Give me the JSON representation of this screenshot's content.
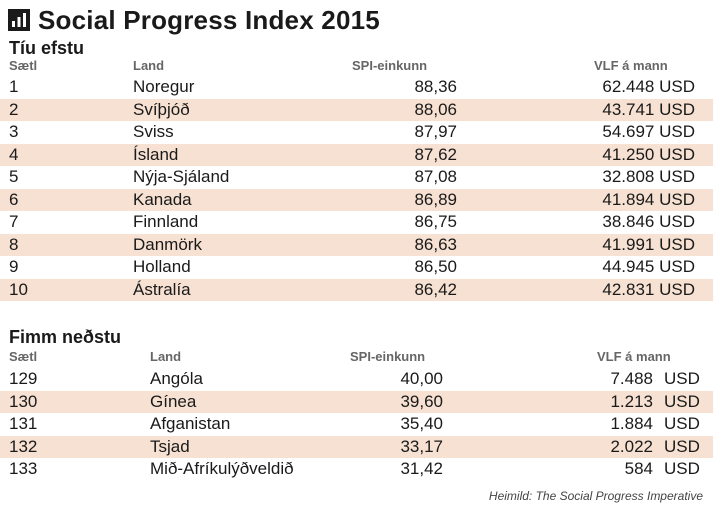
{
  "title": "Social Progress Index 2015",
  "top": {
    "heading": "Tíu efstu",
    "headers": {
      "rank": "Sætl",
      "country": "Land",
      "spi": "SPI-einkunn",
      "gdp": "VLF á mann"
    },
    "rows": [
      {
        "rank": "1",
        "country": "Noregur",
        "spi": "88,36",
        "gdp": "62.448 USD"
      },
      {
        "rank": "2",
        "country": "Svíþjóð",
        "spi": "88,06",
        "gdp": "43.741 USD"
      },
      {
        "rank": "3",
        "country": "Sviss",
        "spi": "87,97",
        "gdp": "54.697 USD"
      },
      {
        "rank": "4",
        "country": "Ísland",
        "spi": "87,62",
        "gdp": "41.250 USD"
      },
      {
        "rank": "5",
        "country": "Nýja-Sjáland",
        "spi": "87,08",
        "gdp": "32.808 USD"
      },
      {
        "rank": "6",
        "country": "Kanada",
        "spi": "86,89",
        "gdp": "41.894 USD"
      },
      {
        "rank": "7",
        "country": "Finnland",
        "spi": "86,75",
        "gdp": "38.846 USD"
      },
      {
        "rank": "8",
        "country": "Danmörk",
        "spi": "86,63",
        "gdp": "41.991 USD"
      },
      {
        "rank": "9",
        "country": "Holland",
        "spi": "86,50",
        "gdp": "44.945 USD"
      },
      {
        "rank": "10",
        "country": "Ástralía",
        "spi": "86,42",
        "gdp": "42.831 USD"
      }
    ]
  },
  "bottom": {
    "heading": "Fimm neðstu",
    "headers": {
      "rank": "Sætl",
      "country": "Land",
      "spi": "SPI-einkunn",
      "gdp": "VLF á mann"
    },
    "rows": [
      {
        "rank": "129",
        "country": "Angóla",
        "spi": "40,00",
        "gdp_value": "7.488",
        "gdp_unit": "USD"
      },
      {
        "rank": "130",
        "country": "Gínea",
        "spi": "39,60",
        "gdp_value": "1.213",
        "gdp_unit": "USD"
      },
      {
        "rank": "131",
        "country": "Afganistan",
        "spi": "35,40",
        "gdp_value": "1.884",
        "gdp_unit": "USD"
      },
      {
        "rank": "132",
        "country": "Tsjad",
        "spi": "33,17",
        "gdp_value": "2.022",
        "gdp_unit": "USD"
      },
      {
        "rank": "133",
        "country": "Mið-Afríkulýðveldið",
        "spi": "31,42",
        "gdp_value": "584",
        "gdp_unit": "USD"
      }
    ]
  },
  "source": "Heimild: The Social Progress Imperative",
  "colors": {
    "row_alt": "#f6e1d2",
    "text": "#1a1a1a",
    "header": "#666666"
  },
  "icons": {
    "title": "bar-chart-icon"
  }
}
